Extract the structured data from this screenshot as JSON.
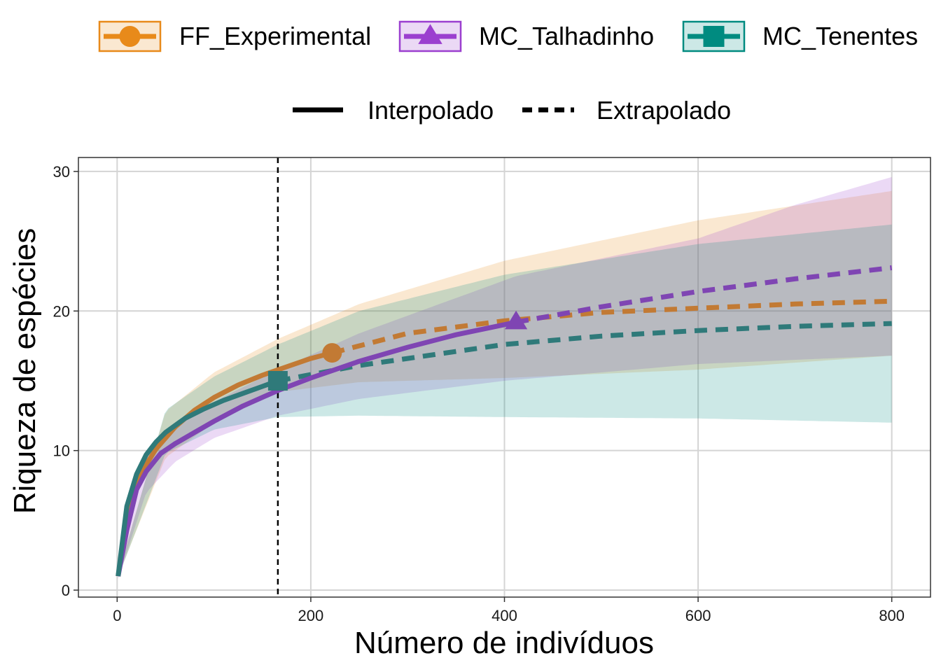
{
  "chart_data": {
    "type": "line",
    "xlabel": "Número de indivíduos",
    "ylabel": "Riqueza de espécies",
    "xlim": [
      -40,
      840
    ],
    "ylim": [
      -0.5,
      31
    ],
    "x_ticks": [
      0,
      200,
      400,
      600,
      800
    ],
    "y_ticks": [
      0,
      10,
      20,
      30
    ],
    "grid": true,
    "legend_position": "top",
    "reference_line_x": 166,
    "line_types": [
      {
        "name": "Interpolado",
        "dash": "solid"
      },
      {
        "name": "Extrapolado",
        "dash": "dashed"
      }
    ],
    "series": [
      {
        "name": "FF_Experimental",
        "color": "#E88A1A",
        "line_color": "#C27A34",
        "marker": "circle",
        "observed": {
          "x": 222,
          "y": 17.0
        },
        "interpolated": {
          "x": [
            1,
            10,
            20,
            30,
            40,
            50,
            60,
            80,
            100,
            125,
            150,
            175,
            200,
            222
          ],
          "y": [
            1,
            5.0,
            7.5,
            9.0,
            10.1,
            10.9,
            11.7,
            12.9,
            13.8,
            14.7,
            15.4,
            16.0,
            16.6,
            17.0
          ]
        },
        "extrapolated": {
          "x": [
            222,
            300,
            400,
            500,
            600,
            700,
            800
          ],
          "y": [
            17.0,
            18.4,
            19.3,
            19.9,
            20.2,
            20.5,
            20.7
          ]
        },
        "ci_lower": {
          "x": [
            1,
            50,
            100,
            166,
            250,
            400,
            600,
            800
          ],
          "y": [
            1,
            9.5,
            12.0,
            14.2,
            14.9,
            15.2,
            15.8,
            16.8
          ]
        },
        "ci_upper": {
          "x": [
            1,
            50,
            100,
            166,
            250,
            400,
            600,
            800
          ],
          "y": [
            1.2,
            12.8,
            15.6,
            18.0,
            20.5,
            23.6,
            26.5,
            28.6
          ]
        }
      },
      {
        "name": "MC_Talhadinho",
        "color": "#9B3FCF",
        "line_color": "#7F45B3",
        "marker": "triangle",
        "observed": {
          "x": 412,
          "y": 19.2
        },
        "interpolated": {
          "x": [
            1,
            10,
            20,
            30,
            45,
            60,
            80,
            100,
            130,
            166,
            200,
            250,
            300,
            350,
            412
          ],
          "y": [
            1,
            4.3,
            7.2,
            8.5,
            9.8,
            10.5,
            11.3,
            12.1,
            13.2,
            14.3,
            15.2,
            16.4,
            17.4,
            18.3,
            19.2
          ]
        },
        "extrapolated": {
          "x": [
            412,
            500,
            600,
            700,
            800
          ],
          "y": [
            19.2,
            20.3,
            21.4,
            22.3,
            23.1
          ]
        },
        "ci_lower": {
          "x": [
            1,
            30,
            60,
            100,
            166,
            250,
            400,
            600,
            800
          ],
          "y": [
            0.8,
            7.0,
            9.2,
            10.9,
            12.5,
            13.7,
            15.0,
            16.2,
            16.8
          ]
        },
        "ci_upper": {
          "x": [
            1,
            30,
            60,
            100,
            166,
            250,
            412,
            600,
            700,
            800
          ],
          "y": [
            1.2,
            9.6,
            11.7,
            13.5,
            15.8,
            18.4,
            22.5,
            25.2,
            27.6,
            29.6
          ]
        }
      },
      {
        "name": "MC_Tenentes",
        "color": "#008B80",
        "line_color": "#2F7A7A",
        "marker": "square",
        "observed": {
          "x": 166,
          "y": 15.0
        },
        "interpolated": {
          "x": [
            1,
            10,
            20,
            30,
            40,
            50,
            70,
            90,
            110,
            130,
            150,
            166
          ],
          "y": [
            1,
            6.0,
            8.3,
            9.7,
            10.6,
            11.3,
            12.3,
            13.0,
            13.6,
            14.1,
            14.6,
            15.0
          ]
        },
        "extrapolated": {
          "x": [
            166,
            250,
            300,
            400,
            500,
            600,
            700,
            800
          ],
          "y": [
            15.0,
            16.1,
            16.6,
            17.6,
            18.2,
            18.6,
            18.9,
            19.1
          ]
        },
        "ci_lower": {
          "x": [
            1,
            50,
            100,
            166,
            250,
            400,
            600,
            800
          ],
          "y": [
            0.9,
            9.8,
            11.5,
            12.4,
            12.5,
            12.4,
            12.3,
            12.0
          ]
        },
        "ci_upper": {
          "x": [
            1,
            50,
            100,
            166,
            250,
            400,
            600,
            800
          ],
          "y": [
            1.1,
            12.9,
            15.3,
            17.6,
            20.0,
            22.6,
            24.8,
            26.2
          ]
        }
      }
    ]
  }
}
